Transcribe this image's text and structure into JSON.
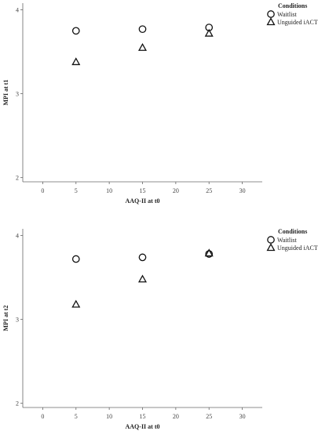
{
  "chart_data": [
    {
      "type": "scatter",
      "xlabel": "AAQ-II at t0",
      "ylabel": "MPI at t1",
      "xlim": [
        -3,
        33
      ],
      "ylim": [
        1.95,
        4.08
      ],
      "xticks": [
        0,
        5,
        10,
        15,
        20,
        25,
        30
      ],
      "yticks": [
        2,
        3,
        4
      ],
      "x_tick_labels": [
        "0",
        "5",
        "10",
        "15",
        "20",
        "25",
        "30"
      ],
      "y_tick_labels": [
        "2",
        "3",
        "4"
      ],
      "legend": {
        "title": "Conditions",
        "position": "top-right"
      },
      "series": [
        {
          "name": "Waitlist",
          "marker": "circle",
          "x": [
            5,
            15,
            25
          ],
          "y": [
            3.75,
            3.77,
            3.79
          ]
        },
        {
          "name": "Unguided iACT",
          "marker": "triangle",
          "x": [
            5,
            15,
            25
          ],
          "y": [
            3.38,
            3.55,
            3.72
          ]
        }
      ]
    },
    {
      "type": "scatter",
      "xlabel": "AAQ-II at t0",
      "ylabel": "MPI at t2",
      "xlim": [
        -3,
        33
      ],
      "ylim": [
        1.95,
        4.08
      ],
      "xticks": [
        0,
        5,
        10,
        15,
        20,
        25,
        30
      ],
      "yticks": [
        2,
        3,
        4
      ],
      "x_tick_labels": [
        "0",
        "5",
        "10",
        "15",
        "20",
        "25",
        "30"
      ],
      "y_tick_labels": [
        "2",
        "3",
        "4"
      ],
      "legend": {
        "title": "Conditions",
        "position": "top-right"
      },
      "series": [
        {
          "name": "Waitlist",
          "marker": "circle",
          "x": [
            5,
            15,
            25
          ],
          "y": [
            3.72,
            3.74,
            3.78
          ]
        },
        {
          "name": "Unguided iACT",
          "marker": "triangle",
          "x": [
            5,
            15,
            25
          ],
          "y": [
            3.18,
            3.48,
            3.79
          ]
        }
      ]
    }
  ]
}
